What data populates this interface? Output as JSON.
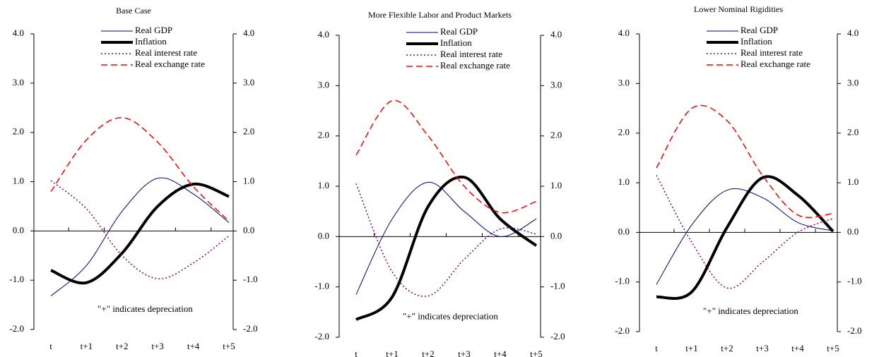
{
  "chart_data": [
    {
      "type": "line",
      "title": "Base Case",
      "annotation": "\"+\"  indicates depreciation",
      "legend": "upper right",
      "categories": [
        "t",
        "t+1",
        "t+2",
        "t+3",
        "t+4",
        "t+5"
      ],
      "ylim": [
        -2,
        4
      ],
      "yticks": [
        {
          "value": -2,
          "label": "-2.0"
        },
        {
          "value": -1,
          "label": "-1.0"
        },
        {
          "value": 0,
          "label": "0.0"
        },
        {
          "value": 1,
          "label": "1.0"
        },
        {
          "value": 2,
          "label": "2.0"
        },
        {
          "value": 3,
          "label": "3.0"
        },
        {
          "value": 4,
          "label": "4.0"
        }
      ],
      "y2lim": [
        -2,
        4
      ],
      "y2ticks": [
        {
          "value": -2,
          "label": "-2.0"
        },
        {
          "value": -1,
          "label": "-1.0"
        },
        {
          "value": 0,
          "label": "0.0"
        },
        {
          "value": 1,
          "label": "1.0"
        },
        {
          "value": 2,
          "label": "2.0"
        },
        {
          "value": 3,
          "label": "3.0"
        },
        {
          "value": 4,
          "label": "4.0"
        }
      ],
      "series": [
        {
          "name": "Real GDP",
          "color": "#000080",
          "linestyle": "solid",
          "linewidth": 1,
          "values": [
            -1.32,
            -0.7,
            0.4,
            1.07,
            0.75,
            0.17
          ]
        },
        {
          "name": "Inflation",
          "color": "#000000",
          "linestyle": "solid",
          "linewidth": 4,
          "values": [
            -0.8,
            -1.05,
            -0.45,
            0.5,
            0.95,
            0.7
          ]
        },
        {
          "name": "Real interest rate",
          "color": "#800080",
          "linestyle": "dotted",
          "linewidth": 1.5,
          "values": [
            1.02,
            0.45,
            -0.5,
            -0.97,
            -0.65,
            -0.1
          ]
        },
        {
          "name": "Real exchange rate",
          "color": "#ff0000",
          "linestyle": "dashed",
          "linewidth": 1.5,
          "values": [
            0.8,
            1.85,
            2.3,
            1.8,
            0.9,
            0.2
          ]
        }
      ]
    },
    {
      "type": "line",
      "title": "More Flexible Labor and Product Markets",
      "annotation": "\"+\"  indicates depreciation",
      "legend": "upper right",
      "categories": [
        "t",
        "t+1",
        "t+2",
        "t+3",
        "t+4",
        "t+5"
      ],
      "ylim": [
        -2,
        4
      ],
      "yticks": [
        {
          "value": -2,
          "label": "-2.0"
        },
        {
          "value": -1,
          "label": "-1.0"
        },
        {
          "value": 0,
          "label": "0.0"
        },
        {
          "value": 1,
          "label": "1.0"
        },
        {
          "value": 2,
          "label": "2.0"
        },
        {
          "value": 3,
          "label": "3.0"
        },
        {
          "value": 4,
          "label": "4.0"
        }
      ],
      "y2lim": [
        -2,
        4
      ],
      "y2ticks": [
        {
          "value": -2,
          "label": "-2.0"
        },
        {
          "value": -1,
          "label": "-1.0"
        },
        {
          "value": 0,
          "label": "0.0"
        },
        {
          "value": 1,
          "label": "1.0"
        },
        {
          "value": 2,
          "label": "2.0"
        },
        {
          "value": 3,
          "label": "3.0"
        },
        {
          "value": 4,
          "label": "4.0"
        }
      ],
      "series": [
        {
          "name": "Real GDP",
          "color": "#000080",
          "linestyle": "solid",
          "linewidth": 1,
          "values": [
            -1.15,
            0.35,
            1.08,
            0.5,
            0.0,
            0.35
          ]
        },
        {
          "name": "Inflation",
          "color": "#000000",
          "linestyle": "solid",
          "linewidth": 4,
          "values": [
            -1.65,
            -1.2,
            0.6,
            1.18,
            0.35,
            -0.18
          ]
        },
        {
          "name": "Real interest rate",
          "color": "#800080",
          "linestyle": "dotted",
          "linewidth": 1.5,
          "values": [
            1.05,
            -0.7,
            -1.18,
            -0.45,
            0.15,
            0.05
          ]
        },
        {
          "name": "Real exchange rate",
          "color": "#ff0000",
          "linestyle": "dashed",
          "linewidth": 1.5,
          "values": [
            1.62,
            2.7,
            2.0,
            1.0,
            0.48,
            0.7
          ]
        }
      ]
    },
    {
      "type": "line",
      "title": "Lower Nominal Rigidities",
      "annotation": "\"+\"  indicates depreciation",
      "legend": "upper right",
      "categories": [
        "t",
        "t+1",
        "t+2",
        "t+3",
        "t+4",
        "t+5"
      ],
      "ylim": [
        -2,
        4
      ],
      "yticks": [
        {
          "value": -2,
          "label": "-2.0"
        },
        {
          "value": -1,
          "label": "-1.0"
        },
        {
          "value": 0,
          "label": "0.0"
        },
        {
          "value": 1,
          "label": "1.0"
        },
        {
          "value": 2,
          "label": "2.0"
        },
        {
          "value": 3,
          "label": "3.0"
        },
        {
          "value": 4,
          "label": "4.0"
        }
      ],
      "y2lim": [
        -2,
        4
      ],
      "y2ticks": [
        {
          "value": -2,
          "label": "-2.0"
        },
        {
          "value": -1,
          "label": "-1.0"
        },
        {
          "value": 0,
          "label": "0.0"
        },
        {
          "value": 1,
          "label": "1.0"
        },
        {
          "value": 2,
          "label": "2.0"
        },
        {
          "value": 3,
          "label": "3.0"
        },
        {
          "value": 4,
          "label": "4.0"
        }
      ],
      "series": [
        {
          "name": "Real GDP",
          "color": "#000080",
          "linestyle": "solid",
          "linewidth": 1,
          "values": [
            -1.05,
            0.15,
            0.85,
            0.7,
            0.2,
            0.03
          ]
        },
        {
          "name": "Inflation",
          "color": "#000000",
          "linestyle": "solid",
          "linewidth": 4,
          "values": [
            -1.3,
            -1.2,
            0.1,
            1.1,
            0.75,
            0.02
          ]
        },
        {
          "name": "Real interest rate",
          "color": "#800080",
          "linestyle": "dotted",
          "linewidth": 1.5,
          "values": [
            1.15,
            -0.2,
            -1.12,
            -0.6,
            0.0,
            0.28
          ]
        },
        {
          "name": "Real exchange rate",
          "color": "#ff0000",
          "linestyle": "dashed",
          "linewidth": 1.5,
          "values": [
            1.3,
            2.5,
            2.25,
            1.15,
            0.35,
            0.38
          ]
        }
      ]
    }
  ]
}
